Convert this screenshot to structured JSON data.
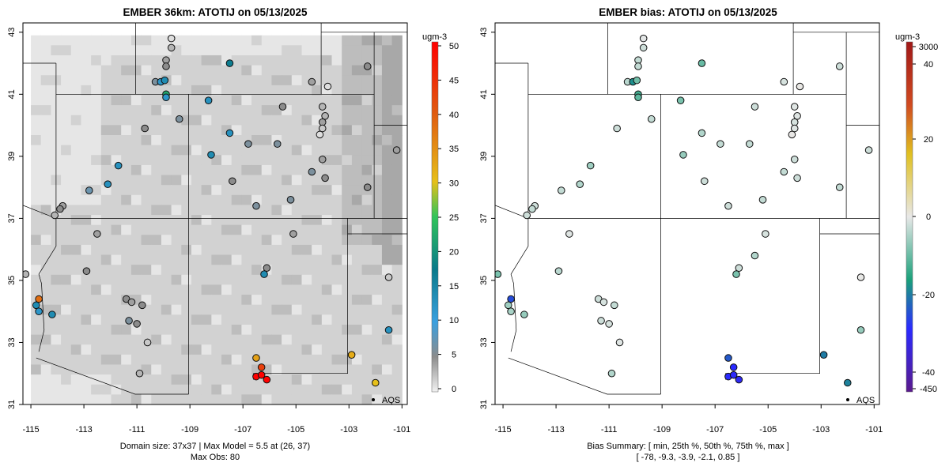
{
  "panels": [
    {
      "title": "EMBER 36km: ATOTIJ on 05/13/2025",
      "legend": {
        "unit": "ugm-3",
        "ticks": [
          "0",
          "5",
          "10",
          "15",
          "20",
          "25",
          "30",
          "35",
          "40",
          "45",
          "50"
        ]
      },
      "aqs_label": "AQS",
      "caption": [
        "Domain size: 37x37 | Max Model = 5.5 at (26, 37)",
        "Max Obs: 80"
      ]
    },
    {
      "title": "EMBER bias: ATOTIJ on 05/13/2025",
      "legend": {
        "unit": "ugm-3",
        "ticks": [
          "-450",
          "-40",
          "-20",
          "0",
          "20",
          "40",
          "3000"
        ]
      },
      "aqs_label": "AQS",
      "caption": [
        "Bias Summary: [ min, 25th %, 50th %, 75th %, max ]",
        "[ -78,  -9.3,  -3.9,  -2.1,  0.85 ]"
      ]
    }
  ],
  "axes": {
    "x_ticks": [
      "-115",
      "-113",
      "-111",
      "-109",
      "-107",
      "-105",
      "-103",
      "-101"
    ],
    "y_ticks": [
      "31",
      "33",
      "35",
      "37",
      "39",
      "41",
      "43"
    ]
  },
  "colors": {
    "model_field": [
      "#e6e6e6",
      "#d2d2d2",
      "#bdbdbd",
      "#a8a8a8"
    ],
    "conc_scale": [
      "#f0f0f0",
      "#8c8c8c",
      "#1e90ff",
      "#0a7a7a",
      "#31c45a",
      "#e4c21e",
      "#e05a10",
      "#ff0000"
    ],
    "bias_scale": [
      "#5a1a8c",
      "#2a2aff",
      "#1aa07a",
      "#e8e8e8",
      "#e0c020",
      "#d04a20",
      "#a01818"
    ]
  },
  "chart_data": {
    "type": "scatter",
    "x_range": [
      -115.3,
      -100.8
    ],
    "y_range": [
      31,
      43.3
    ],
    "panels": [
      {
        "name": "concentration",
        "sites": [
          {
            "lon": -109.7,
            "lat": 42.8,
            "v": 1
          },
          {
            "lon": -109.7,
            "lat": 42.5,
            "v": 3
          },
          {
            "lon": -109.9,
            "lat": 42.1,
            "v": 4
          },
          {
            "lon": -109.9,
            "lat": 41.9,
            "v": 5
          },
          {
            "lon": -110.3,
            "lat": 41.4,
            "v": 6
          },
          {
            "lon": -110.1,
            "lat": 41.4,
            "v": 12
          },
          {
            "lon": -109.95,
            "lat": 41.45,
            "v": 14
          },
          {
            "lon": -109.9,
            "lat": 41.0,
            "v": 22
          },
          {
            "lon": -109.9,
            "lat": 40.9,
            "v": 12
          },
          {
            "lon": -107.5,
            "lat": 42.0,
            "v": 17
          },
          {
            "lon": -108.3,
            "lat": 40.8,
            "v": 13
          },
          {
            "lon": -104.4,
            "lat": 41.4,
            "v": 4
          },
          {
            "lon": -103.8,
            "lat": 41.25,
            "v": 1
          },
          {
            "lon": -102.3,
            "lat": 41.9,
            "v": 5
          },
          {
            "lon": -104.0,
            "lat": 40.6,
            "v": 3
          },
          {
            "lon": -103.9,
            "lat": 40.3,
            "v": 3
          },
          {
            "lon": -104.0,
            "lat": 40.1,
            "v": 4
          },
          {
            "lon": -104.0,
            "lat": 39.9,
            "v": 2
          },
          {
            "lon": -104.1,
            "lat": 39.7,
            "v": 1
          },
          {
            "lon": -105.5,
            "lat": 40.6,
            "v": 5
          },
          {
            "lon": -107.5,
            "lat": 39.75,
            "v": 13
          },
          {
            "lon": -108.2,
            "lat": 39.05,
            "v": 14
          },
          {
            "lon": -109.4,
            "lat": 40.2,
            "v": 6
          },
          {
            "lon": -106.8,
            "lat": 39.4,
            "v": 6
          },
          {
            "lon": -105.7,
            "lat": 39.4,
            "v": 6
          },
          {
            "lon": -104.0,
            "lat": 38.9,
            "v": 4
          },
          {
            "lon": -104.4,
            "lat": 38.5,
            "v": 6
          },
          {
            "lon": -103.9,
            "lat": 38.3,
            "v": 5
          },
          {
            "lon": -107.4,
            "lat": 38.2,
            "v": 5
          },
          {
            "lon": -105.2,
            "lat": 37.6,
            "v": 6
          },
          {
            "lon": -106.5,
            "lat": 37.4,
            "v": 6
          },
          {
            "lon": -102.3,
            "lat": 38.0,
            "v": 5
          },
          {
            "lon": -101.2,
            "lat": 39.2,
            "v": 4
          },
          {
            "lon": -111.7,
            "lat": 38.7,
            "v": 13
          },
          {
            "lon": -112.1,
            "lat": 38.1,
            "v": 13
          },
          {
            "lon": -112.8,
            "lat": 37.9,
            "v": 7
          },
          {
            "lon": -113.8,
            "lat": 37.4,
            "v": 4
          },
          {
            "lon": -113.9,
            "lat": 37.3,
            "v": 5
          },
          {
            "lon": -114.1,
            "lat": 37.1,
            "v": 3
          },
          {
            "lon": -112.5,
            "lat": 36.5,
            "v": 4
          },
          {
            "lon": -112.9,
            "lat": 35.3,
            "v": 5
          },
          {
            "lon": -111.4,
            "lat": 34.4,
            "v": 5
          },
          {
            "lon": -111.2,
            "lat": 34.3,
            "v": 4
          },
          {
            "lon": -110.8,
            "lat": 34.2,
            "v": 5
          },
          {
            "lon": -111.3,
            "lat": 33.7,
            "v": 6
          },
          {
            "lon": -111.0,
            "lat": 33.6,
            "v": 5
          },
          {
            "lon": -110.6,
            "lat": 33.0,
            "v": 2
          },
          {
            "lon": -110.9,
            "lat": 32.0,
            "v": 3
          },
          {
            "lon": -114.8,
            "lat": 34.2,
            "v": 14
          },
          {
            "lon": -114.7,
            "lat": 34.0,
            "v": 12
          },
          {
            "lon": -114.7,
            "lat": 34.4,
            "v": 38
          },
          {
            "lon": -114.2,
            "lat": 33.9,
            "v": 14
          },
          {
            "lon": -115.2,
            "lat": 35.2,
            "v": 3
          },
          {
            "lon": -105.1,
            "lat": 36.5,
            "v": 4
          },
          {
            "lon": -106.1,
            "lat": 35.4,
            "v": 5
          },
          {
            "lon": -106.2,
            "lat": 35.2,
            "v": 14
          },
          {
            "lon": -106.5,
            "lat": 32.5,
            "v": 33
          },
          {
            "lon": -106.3,
            "lat": 32.2,
            "v": 43
          },
          {
            "lon": -106.5,
            "lat": 31.9,
            "v": 50
          },
          {
            "lon": -106.3,
            "lat": 31.95,
            "v": 50
          },
          {
            "lon": -106.1,
            "lat": 31.8,
            "v": 50
          },
          {
            "lon": -102.9,
            "lat": 32.6,
            "v": 32
          },
          {
            "lon": -102.0,
            "lat": 31.7,
            "v": 30
          },
          {
            "lon": -101.5,
            "lat": 33.4,
            "v": 13
          },
          {
            "lon": -101.5,
            "lat": 35.1,
            "v": 2
          },
          {
            "lon": -110.7,
            "lat": 39.9,
            "v": 5
          }
        ]
      },
      {
        "name": "bias",
        "sites": [
          {
            "lon": -109.7,
            "lat": 42.8,
            "b": -0.5
          },
          {
            "lon": -109.7,
            "lat": 42.5,
            "b": -3
          },
          {
            "lon": -109.9,
            "lat": 42.1,
            "b": -4
          },
          {
            "lon": -109.9,
            "lat": 41.9,
            "b": -4
          },
          {
            "lon": -110.3,
            "lat": 41.4,
            "b": -5
          },
          {
            "lon": -110.1,
            "lat": 41.4,
            "b": -25
          },
          {
            "lon": -109.95,
            "lat": 41.45,
            "b": -13
          },
          {
            "lon": -109.9,
            "lat": 41.0,
            "b": -18
          },
          {
            "lon": -109.9,
            "lat": 40.9,
            "b": -15
          },
          {
            "lon": -107.5,
            "lat": 42.0,
            "b": -14
          },
          {
            "lon": -108.3,
            "lat": 40.8,
            "b": -12
          },
          {
            "lon": -104.4,
            "lat": 41.4,
            "b": -2
          },
          {
            "lon": -103.8,
            "lat": 41.25,
            "b": 0.5
          },
          {
            "lon": -102.3,
            "lat": 41.9,
            "b": -3
          },
          {
            "lon": -104.0,
            "lat": 40.6,
            "b": -1
          },
          {
            "lon": -103.9,
            "lat": 40.3,
            "b": -1
          },
          {
            "lon": -104.0,
            "lat": 40.1,
            "b": -2
          },
          {
            "lon": -104.0,
            "lat": 39.9,
            "b": -1
          },
          {
            "lon": -104.1,
            "lat": 39.7,
            "b": 0.3
          },
          {
            "lon": -105.5,
            "lat": 40.6,
            "b": -3
          },
          {
            "lon": -107.5,
            "lat": 39.75,
            "b": -6
          },
          {
            "lon": -108.2,
            "lat": 39.05,
            "b": -9
          },
          {
            "lon": -109.4,
            "lat": 40.2,
            "b": -4
          },
          {
            "lon": -106.8,
            "lat": 39.4,
            "b": -4
          },
          {
            "lon": -105.7,
            "lat": 39.4,
            "b": -4
          },
          {
            "lon": -104.0,
            "lat": 38.9,
            "b": -3
          },
          {
            "lon": -104.4,
            "lat": 38.5,
            "b": -4
          },
          {
            "lon": -103.9,
            "lat": 38.3,
            "b": -3
          },
          {
            "lon": -107.4,
            "lat": 38.2,
            "b": -3
          },
          {
            "lon": -105.2,
            "lat": 37.6,
            "b": -4
          },
          {
            "lon": -106.5,
            "lat": 37.4,
            "b": -3
          },
          {
            "lon": -102.3,
            "lat": 38.0,
            "b": -4
          },
          {
            "lon": -101.2,
            "lat": 39.2,
            "b": -3
          },
          {
            "lon": -111.7,
            "lat": 38.7,
            "b": -8
          },
          {
            "lon": -112.1,
            "lat": 38.1,
            "b": -6
          },
          {
            "lon": -112.8,
            "lat": 37.9,
            "b": -4
          },
          {
            "lon": -113.8,
            "lat": 37.4,
            "b": -3
          },
          {
            "lon": -113.9,
            "lat": 37.3,
            "b": -4
          },
          {
            "lon": -114.1,
            "lat": 37.1,
            "b": -3
          },
          {
            "lon": -112.5,
            "lat": 36.5,
            "b": -1
          },
          {
            "lon": -112.9,
            "lat": 35.3,
            "b": -5
          },
          {
            "lon": -111.4,
            "lat": 34.4,
            "b": -3
          },
          {
            "lon": -111.2,
            "lat": 34.3,
            "b": -2
          },
          {
            "lon": -110.8,
            "lat": 34.2,
            "b": -4
          },
          {
            "lon": -111.3,
            "lat": 33.7,
            "b": -3
          },
          {
            "lon": -111.0,
            "lat": 33.6,
            "b": -2
          },
          {
            "lon": -110.6,
            "lat": 33.0,
            "b": -1
          },
          {
            "lon": -110.9,
            "lat": 32.0,
            "b": -6
          },
          {
            "lon": -114.8,
            "lat": 34.2,
            "b": -8
          },
          {
            "lon": -114.7,
            "lat": 34.0,
            "b": -7
          },
          {
            "lon": -114.7,
            "lat": 34.4,
            "b": -35
          },
          {
            "lon": -114.2,
            "lat": 33.9,
            "b": -9
          },
          {
            "lon": -115.2,
            "lat": 35.2,
            "b": -12
          },
          {
            "lon": -105.1,
            "lat": 36.5,
            "b": -2
          },
          {
            "lon": -106.1,
            "lat": 35.4,
            "b": -3
          },
          {
            "lon": -106.2,
            "lat": 35.2,
            "b": -12
          },
          {
            "lon": -105.5,
            "lat": 35.8,
            "b": -6
          },
          {
            "lon": -106.5,
            "lat": 32.5,
            "b": -33
          },
          {
            "lon": -106.3,
            "lat": 32.2,
            "b": -40
          },
          {
            "lon": -106.5,
            "lat": 31.9,
            "b": -45
          },
          {
            "lon": -106.3,
            "lat": 31.95,
            "b": -60
          },
          {
            "lon": -106.1,
            "lat": 31.8,
            "b": -78
          },
          {
            "lon": -102.9,
            "lat": 32.6,
            "b": -28
          },
          {
            "lon": -102.0,
            "lat": 31.7,
            "b": -27
          },
          {
            "lon": -101.5,
            "lat": 33.4,
            "b": -9
          },
          {
            "lon": -101.5,
            "lat": 35.1,
            "b": 0.2
          },
          {
            "lon": -110.7,
            "lat": 39.9,
            "b": -3
          }
        ]
      }
    ]
  }
}
